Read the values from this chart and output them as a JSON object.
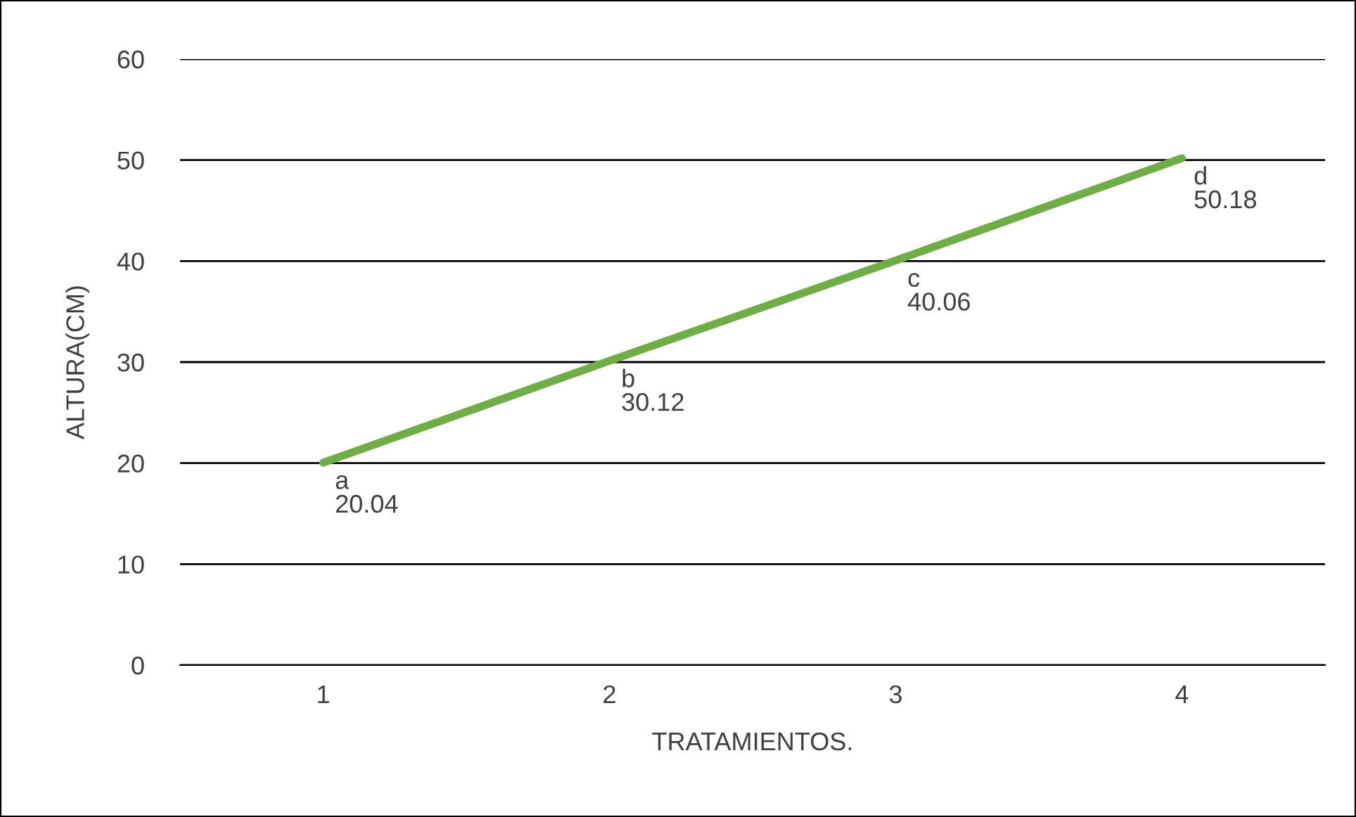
{
  "chart_data": {
    "type": "line",
    "xlabel": "TRATAMIENTOS.",
    "ylabel": "ALTURA(CM)",
    "categories": [
      "1",
      "2",
      "3",
      "4"
    ],
    "series": [
      {
        "color": "#70ad47",
        "values": [
          20.04,
          30.12,
          40.06,
          50.18
        ],
        "value_labels": [
          "a\n20.04",
          "b\n30.12",
          "c\n40.06",
          "d\n50.18"
        ]
      }
    ],
    "ylim": [
      0,
      60
    ],
    "yticks": [
      0,
      10,
      20,
      30,
      40,
      50,
      60
    ],
    "grid": "y",
    "marker": "none",
    "line_style": "solid"
  }
}
